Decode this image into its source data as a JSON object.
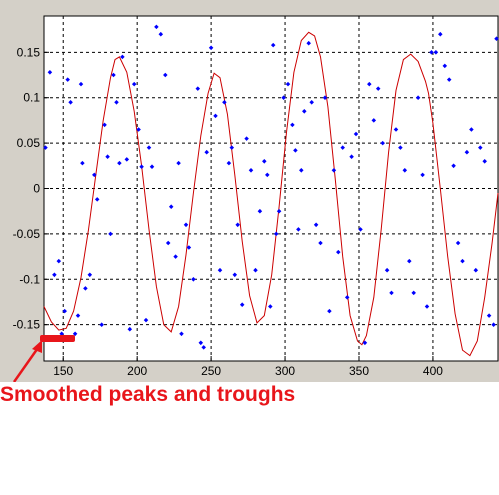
{
  "chart_data": {
    "type": "scatter",
    "title": "",
    "xlabel": "",
    "ylabel": "",
    "xlim": [
      137,
      444
    ],
    "ylim": [
      -0.19,
      0.19
    ],
    "x_ticks": [
      150,
      200,
      250,
      300,
      350,
      400
    ],
    "x_tick_labels": [
      "150",
      "200",
      "250",
      "300",
      "350",
      "400"
    ],
    "y_ticks": [
      0.15,
      0.1,
      0.05,
      0,
      -0.05,
      -0.1,
      -0.15
    ],
    "y_tick_labels": [
      "0.15",
      "0.1",
      "0.05",
      "0",
      "-0.05",
      "-0.1",
      "-0.15"
    ],
    "grid": true,
    "series": [
      {
        "kind": "smoothed-line",
        "color": "#cc0000",
        "x": [
          137,
          142,
          147,
          152,
          157,
          162,
          167,
          172,
          177,
          182,
          185,
          188,
          193,
          198,
          203,
          208,
          213,
          218,
          223,
          228,
          233,
          238,
          243,
          248,
          252,
          256,
          261,
          266,
          271,
          276,
          281,
          286,
          291,
          296,
          301,
          306,
          311,
          316,
          320,
          324,
          329,
          334,
          339,
          344,
          349,
          352,
          355,
          360,
          365,
          370,
          375,
          380,
          385,
          390,
          395,
          397,
          400,
          405,
          410,
          415,
          420,
          425,
          430,
          435,
          440,
          444
        ],
        "y": [
          -0.13,
          -0.147,
          -0.156,
          -0.154,
          -0.135,
          -0.098,
          -0.046,
          0.015,
          0.075,
          0.122,
          0.142,
          0.145,
          0.128,
          0.085,
          0.025,
          -0.045,
          -0.108,
          -0.15,
          -0.158,
          -0.13,
          -0.073,
          -0.005,
          0.058,
          0.105,
          0.127,
          0.122,
          0.082,
          0.015,
          -0.058,
          -0.118,
          -0.148,
          -0.14,
          -0.095,
          -0.02,
          0.062,
          0.128,
          0.163,
          0.172,
          0.168,
          0.145,
          0.09,
          0.01,
          -0.075,
          -0.14,
          -0.168,
          -0.172,
          -0.162,
          -0.12,
          -0.045,
          0.04,
          0.108,
          0.142,
          0.148,
          0.14,
          0.118,
          0.105,
          0.072,
          0.0,
          -0.075,
          -0.138,
          -0.178,
          -0.184,
          -0.168,
          -0.12,
          -0.06,
          -0.005
        ]
      },
      {
        "kind": "points",
        "color": "#0000ff",
        "x": [
          138,
          141,
          144,
          147,
          149,
          151,
          153,
          155,
          158,
          160,
          162,
          163,
          165,
          168,
          171,
          173,
          176,
          178,
          180,
          182,
          184,
          186,
          188,
          190,
          193,
          195,
          198,
          201,
          203,
          206,
          208,
          210,
          213,
          216,
          219,
          221,
          223,
          226,
          228,
          230,
          233,
          235,
          238,
          241,
          243,
          245,
          247,
          250,
          253,
          256,
          259,
          262,
          264,
          266,
          268,
          271,
          274,
          277,
          280,
          283,
          286,
          288,
          290,
          292,
          294,
          296,
          299,
          302,
          305,
          307,
          309,
          311,
          313,
          316,
          318,
          321,
          324,
          327,
          330,
          333,
          336,
          339,
          342,
          345,
          348,
          351,
          354,
          357,
          360,
          363,
          366,
          369,
          372,
          375,
          378,
          381,
          384,
          387,
          390,
          393,
          396,
          399,
          402,
          405,
          408,
          411,
          414,
          417,
          420,
          423,
          426,
          429,
          432,
          435,
          438,
          441,
          443
        ],
        "y": [
          0.045,
          0.128,
          -0.095,
          -0.08,
          -0.16,
          -0.135,
          0.12,
          0.095,
          -0.16,
          -0.14,
          0.115,
          0.028,
          -0.11,
          -0.095,
          0.015,
          -0.012,
          -0.15,
          0.07,
          0.035,
          -0.05,
          0.125,
          0.095,
          0.028,
          0.145,
          0.032,
          -0.155,
          0.115,
          0.065,
          0.024,
          -0.145,
          0.045,
          0.024,
          0.178,
          0.17,
          0.125,
          -0.06,
          -0.02,
          -0.075,
          0.028,
          -0.16,
          -0.04,
          -0.065,
          -0.1,
          0.11,
          -0.17,
          -0.175,
          0.04,
          0.155,
          0.08,
          -0.09,
          0.095,
          0.028,
          0.045,
          -0.095,
          -0.04,
          -0.128,
          0.055,
          0.02,
          -0.09,
          -0.025,
          0.03,
          0.015,
          -0.13,
          0.158,
          -0.05,
          -0.025,
          0.1,
          0.115,
          0.07,
          0.042,
          -0.045,
          0.02,
          0.085,
          0.16,
          0.095,
          -0.04,
          -0.06,
          0.1,
          -0.135,
          0.02,
          -0.07,
          0.045,
          -0.12,
          0.035,
          0.06,
          -0.045,
          -0.17,
          0.115,
          0.075,
          0.11,
          0.05,
          -0.09,
          -0.115,
          0.065,
          0.045,
          0.02,
          -0.08,
          -0.115,
          0.1,
          0.015,
          -0.13,
          0.15,
          0.15,
          0.17,
          0.135,
          0.12,
          0.025,
          -0.06,
          -0.08,
          0.04,
          0.065,
          -0.09,
          0.045,
          0.03,
          -0.14,
          -0.15,
          0.165
        ]
      }
    ],
    "annotation": {
      "text": "Smoothed peaks and troughs",
      "color": "#e8161b"
    }
  }
}
